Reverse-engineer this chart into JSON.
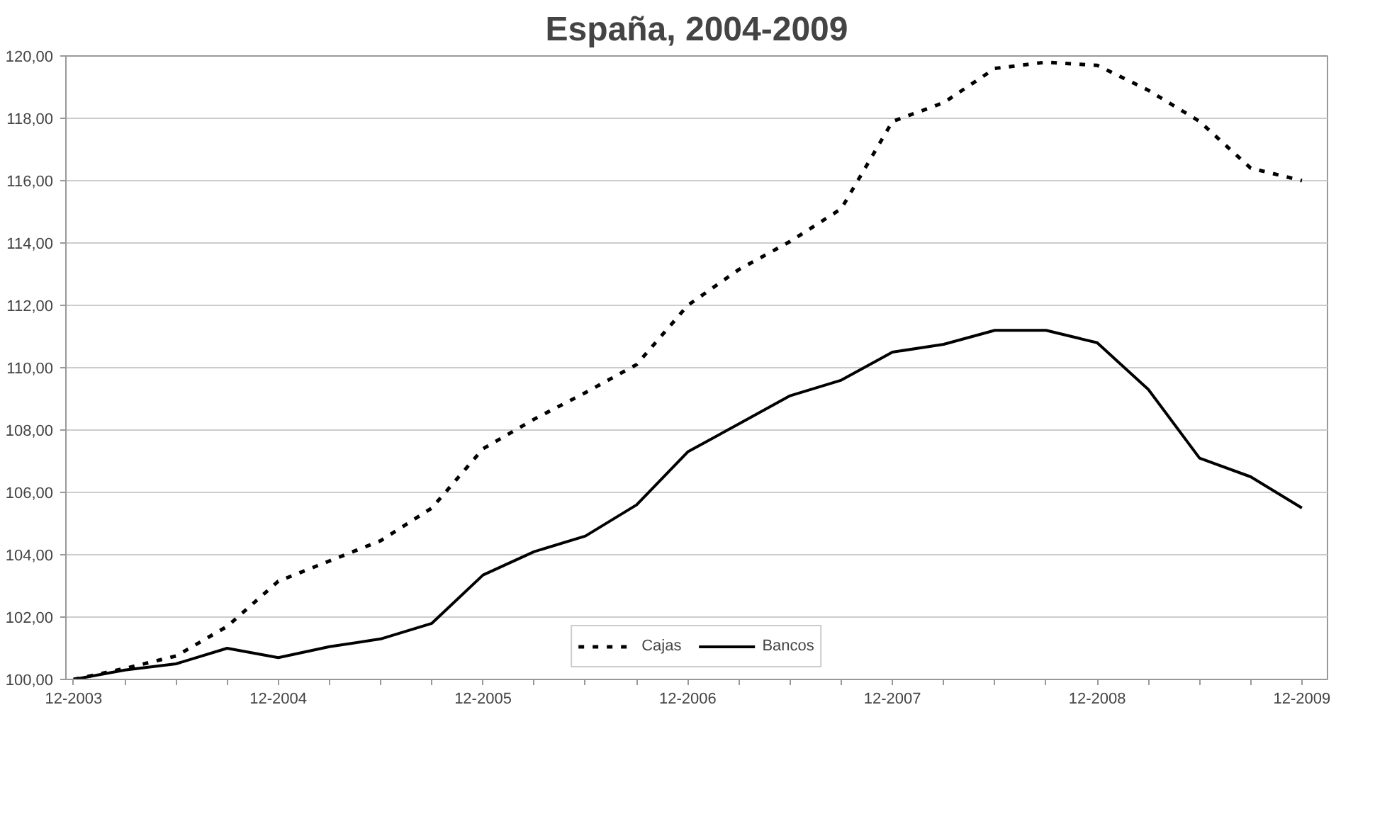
{
  "chart_data": {
    "type": "line",
    "title": "España, 2004-2009",
    "categories": [
      "12-2003",
      null,
      null,
      null,
      "12-2004",
      null,
      null,
      null,
      "12-2005",
      null,
      null,
      null,
      "12-2006",
      null,
      null,
      null,
      "12-2007",
      null,
      null,
      null,
      "12-2008",
      null,
      null,
      null,
      "12-2009"
    ],
    "series": [
      {
        "name": "Cajas",
        "color": "#000000",
        "line_style": "dashed",
        "values": [
          100.0,
          100.35,
          100.75,
          101.7,
          103.15,
          103.8,
          104.45,
          105.5,
          107.4,
          108.35,
          109.2,
          110.1,
          112.0,
          113.15,
          114.05,
          115.1,
          117.9,
          118.5,
          119.6,
          119.8,
          119.7,
          118.9,
          117.9,
          116.4,
          116.0
        ]
      },
      {
        "name": "Bancos",
        "color": "#000000",
        "line_style": "solid",
        "values": [
          100.0,
          100.3,
          100.5,
          101.0,
          100.7,
          101.05,
          101.3,
          101.8,
          103.35,
          104.1,
          104.6,
          105.6,
          107.3,
          108.2,
          109.1,
          109.6,
          110.5,
          110.75,
          111.2,
          111.2,
          110.8,
          109.3,
          107.1,
          106.5,
          105.5
        ]
      }
    ],
    "ylim": [
      100,
      120
    ],
    "yticks": [
      {
        "value": 100,
        "label": "100,00"
      },
      {
        "value": 102,
        "label": "102,00"
      },
      {
        "value": 104,
        "label": "104,00"
      },
      {
        "value": 106,
        "label": "106,00"
      },
      {
        "value": 108,
        "label": "108,00"
      },
      {
        "value": 110,
        "label": "110,00"
      },
      {
        "value": 112,
        "label": "112,00"
      },
      {
        "value": 114,
        "label": "114,00"
      },
      {
        "value": 116,
        "label": "116,00"
      },
      {
        "value": 118,
        "label": "118,00"
      },
      {
        "value": 120,
        "label": "120,00"
      }
    ],
    "grid": "y",
    "legend": "bottom",
    "marker": "none"
  }
}
